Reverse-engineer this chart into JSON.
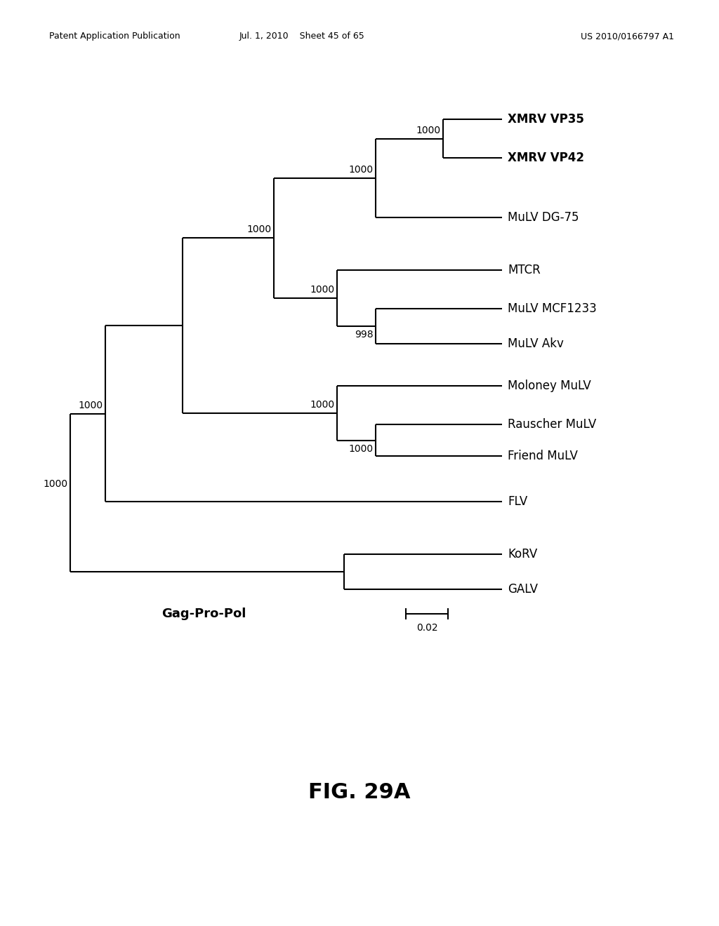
{
  "title": "FIG. 29A",
  "label_gag": "Gag-Pro-Pol",
  "scale_label": "0.02",
  "header_left": "Patent Application Publication",
  "header_mid": "Jul. 1, 2010    Sheet 45 of 65",
  "header_right": "US 2010/0166797 A1",
  "bold_taxa": [
    "XMRV VP35",
    "XMRV VP42"
  ],
  "background": "#ffffff",
  "line_color": "#000000",
  "text_color": "#000000",
  "taxa_order": [
    "XMRV VP35",
    "XMRV VP42",
    "MuLV DG-75",
    "MTCR",
    "MuLV MCF1233",
    "MuLV Akv",
    "Moloney MuLV",
    "Rauscher MuLV",
    "Friend MuLV",
    "FLV",
    "KoRV",
    "GALV"
  ]
}
